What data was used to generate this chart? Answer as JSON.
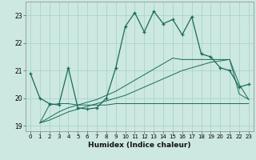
{
  "xlabel": "Humidex (Indice chaleur)",
  "bg_color": "#cce8e0",
  "grid_color": "#aad4cc",
  "line_color": "#1a6b5a",
  "xlim": [
    -0.5,
    23.5
  ],
  "ylim": [
    18.8,
    23.5
  ],
  "yticks": [
    19,
    20,
    21,
    22,
    23
  ],
  "xticks": [
    0,
    1,
    2,
    3,
    4,
    5,
    6,
    7,
    8,
    9,
    10,
    11,
    12,
    13,
    14,
    15,
    16,
    17,
    18,
    19,
    20,
    21,
    22,
    23
  ],
  "series_main": {
    "x": [
      0,
      1,
      2,
      3,
      4,
      5,
      6,
      7,
      8,
      9,
      10,
      11,
      12,
      13,
      14,
      15,
      16,
      17,
      18,
      19,
      20,
      21,
      22,
      23
    ],
    "y": [
      20.9,
      20.0,
      19.8,
      19.75,
      21.1,
      19.65,
      19.6,
      19.65,
      20.0,
      21.1,
      22.6,
      23.1,
      22.4,
      23.15,
      22.7,
      22.85,
      22.3,
      22.95,
      21.6,
      21.5,
      21.1,
      21.0,
      20.4,
      20.5
    ]
  },
  "series_flat": {
    "x": [
      1,
      2,
      3,
      4,
      5,
      6,
      7,
      8,
      9,
      10,
      11,
      12,
      13,
      14,
      15,
      16,
      17,
      18,
      19,
      20,
      21,
      22,
      23
    ],
    "y": [
      19.1,
      19.75,
      19.8,
      19.8,
      19.75,
      19.75,
      19.75,
      19.75,
      19.8,
      19.8,
      19.8,
      19.8,
      19.8,
      19.8,
      19.8,
      19.8,
      19.8,
      19.8,
      19.8,
      19.8,
      19.8,
      19.8,
      19.8
    ]
  },
  "series_lower_diag": {
    "x": [
      1,
      2,
      3,
      4,
      5,
      6,
      7,
      8,
      9,
      10,
      11,
      12,
      13,
      14,
      15,
      16,
      17,
      18,
      19,
      20,
      21,
      22,
      23
    ],
    "y": [
      19.1,
      19.2,
      19.35,
      19.5,
      19.6,
      19.7,
      19.8,
      19.9,
      20.0,
      20.1,
      20.25,
      20.4,
      20.55,
      20.7,
      20.85,
      21.0,
      21.1,
      21.2,
      21.3,
      21.35,
      21.4,
      20.5,
      19.95
    ]
  },
  "series_upper_diag": {
    "x": [
      1,
      2,
      3,
      4,
      5,
      6,
      7,
      8,
      9,
      10,
      11,
      12,
      13,
      14,
      15,
      16,
      17,
      18,
      19,
      20,
      21,
      22,
      23
    ],
    "y": [
      19.1,
      19.3,
      19.5,
      19.65,
      19.75,
      19.85,
      19.95,
      20.1,
      20.25,
      20.45,
      20.65,
      20.85,
      21.05,
      21.25,
      21.45,
      21.4,
      21.4,
      21.4,
      21.4,
      21.4,
      21.4,
      20.15,
      19.95
    ]
  }
}
